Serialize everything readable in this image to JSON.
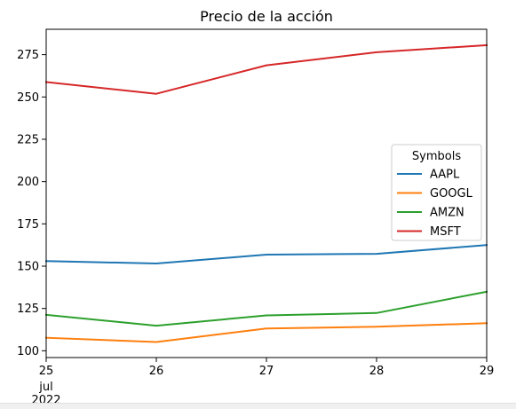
{
  "chart_data": {
    "type": "line",
    "title": "Precio de la acción",
    "x": [
      25,
      26,
      27,
      28,
      29
    ],
    "x_tick_labels": [
      "25",
      "26",
      "27",
      "28",
      "29"
    ],
    "x_sub_label": [
      "jul",
      "2022"
    ],
    "ylim": [
      96,
      290
    ],
    "y_ticks": [
      100,
      125,
      150,
      175,
      200,
      225,
      250,
      275
    ],
    "y_tick_labels": [
      "100",
      "125",
      "150",
      "175",
      "200",
      "225",
      "250",
      "275"
    ],
    "grid": false,
    "legend": {
      "title": "Symbols",
      "placement": "center-right"
    },
    "series": [
      {
        "name": "AAPL",
        "color": "#1f77b4",
        "values": [
          153.0,
          151.6,
          156.8,
          157.3,
          162.5
        ]
      },
      {
        "name": "GOOGL",
        "color": "#ff7f0e",
        "values": [
          107.7,
          105.2,
          113.2,
          114.2,
          116.3
        ]
      },
      {
        "name": "AMZN",
        "color": "#2ca02c",
        "values": [
          121.2,
          114.8,
          120.9,
          122.3,
          134.9
        ]
      },
      {
        "name": "MSFT",
        "color": "#d62728",
        "values": [
          258.8,
          251.9,
          268.7,
          276.4,
          280.6
        ]
      }
    ]
  }
}
